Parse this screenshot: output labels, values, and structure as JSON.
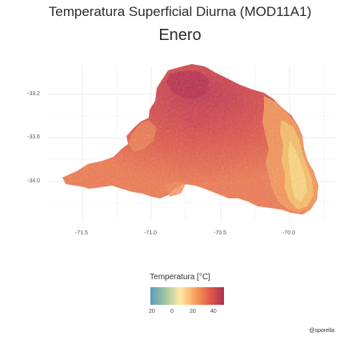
{
  "title": "Temperatura Superficial Diurna (MOD11A1)",
  "subtitle": "Enero",
  "axes": {
    "y_ticks": [
      "-33.2",
      "-33.6",
      "-34.0"
    ],
    "x_ticks": [
      "-71.5",
      "-71.0",
      "-70.5",
      "-70.0"
    ]
  },
  "legend": {
    "title": "Temperatura [°C]",
    "ticks": [
      "20",
      "0",
      "20",
      "40"
    ],
    "colors": [
      "#5b9bbd",
      "#9ec4a0",
      "#ffe9a6",
      "#f8a45e",
      "#e45c4a",
      "#b0304d"
    ]
  },
  "caption": "@sporella",
  "map_colors": {
    "hot": "#c73a52",
    "warm": "#e8684d",
    "mild": "#f59a5c",
    "cool": "#fbd681",
    "grid": "#ececec"
  }
}
